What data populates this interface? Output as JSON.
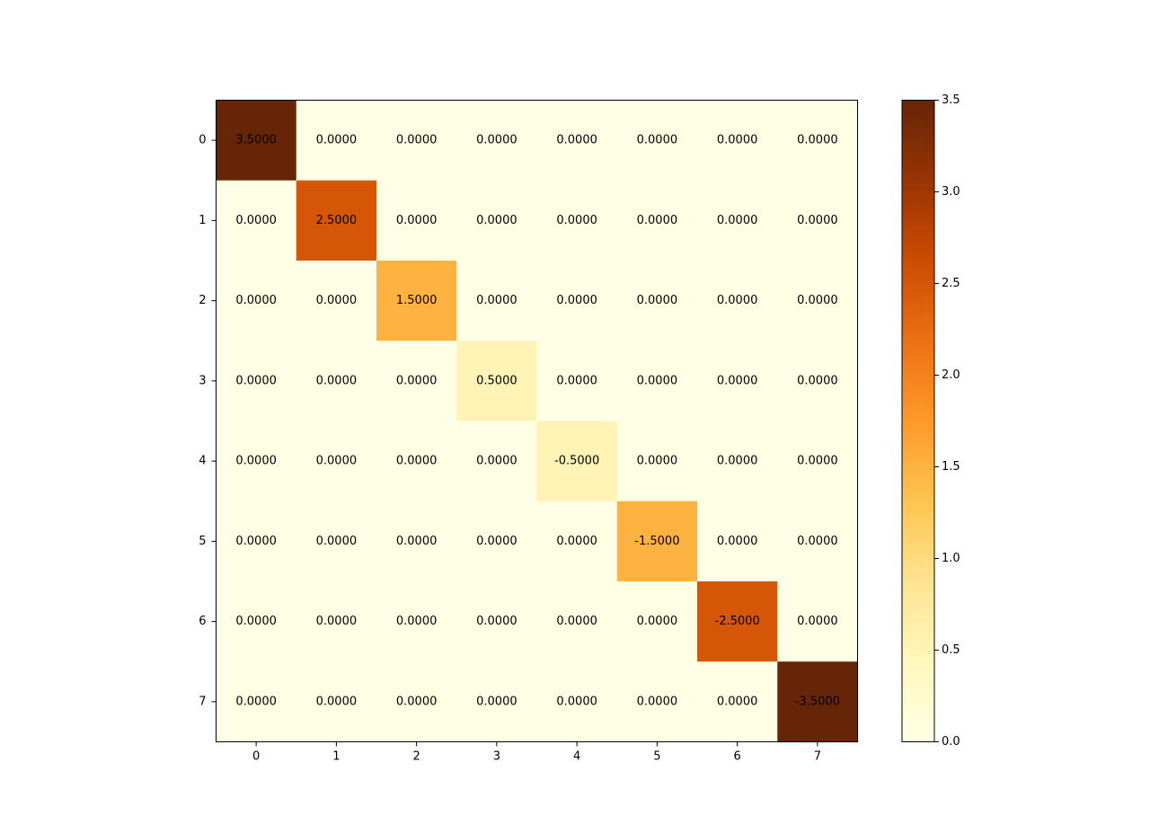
{
  "chart_data": {
    "type": "heatmap",
    "title": "",
    "xlabel": "",
    "ylabel": "",
    "x_ticks": [
      "0",
      "1",
      "2",
      "3",
      "4",
      "5",
      "6",
      "7"
    ],
    "y_ticks": [
      "0",
      "1",
      "2",
      "3",
      "4",
      "5",
      "6",
      "7"
    ],
    "values": [
      [
        3.5,
        0,
        0,
        0,
        0,
        0,
        0,
        0
      ],
      [
        0,
        2.5,
        0,
        0,
        0,
        0,
        0,
        0
      ],
      [
        0,
        0,
        1.5,
        0,
        0,
        0,
        0,
        0
      ],
      [
        0,
        0,
        0,
        0.5,
        0,
        0,
        0,
        0
      ],
      [
        0,
        0,
        0,
        0,
        -0.5,
        0,
        0,
        0
      ],
      [
        0,
        0,
        0,
        0,
        0,
        -1.5,
        0,
        0
      ],
      [
        0,
        0,
        0,
        0,
        0,
        0,
        -2.5,
        0
      ],
      [
        0,
        0,
        0,
        0,
        0,
        0,
        0,
        -3.5
      ]
    ],
    "cell_labels": [
      [
        "3.5000",
        "0.0000",
        "0.0000",
        "0.0000",
        "0.0000",
        "0.0000",
        "0.0000",
        "0.0000"
      ],
      [
        "0.0000",
        "2.5000",
        "0.0000",
        "0.0000",
        "0.0000",
        "0.0000",
        "0.0000",
        "0.0000"
      ],
      [
        "0.0000",
        "0.0000",
        "1.5000",
        "0.0000",
        "0.0000",
        "0.0000",
        "0.0000",
        "0.0000"
      ],
      [
        "0.0000",
        "0.0000",
        "0.0000",
        "0.5000",
        "0.0000",
        "0.0000",
        "0.0000",
        "0.0000"
      ],
      [
        "0.0000",
        "0.0000",
        "0.0000",
        "0.0000",
        "-0.5000",
        "0.0000",
        "0.0000",
        "0.0000"
      ],
      [
        "0.0000",
        "0.0000",
        "0.0000",
        "0.0000",
        "0.0000",
        "-1.5000",
        "0.0000",
        "0.0000"
      ],
      [
        "0.0000",
        "0.0000",
        "0.0000",
        "0.0000",
        "0.0000",
        "0.0000",
        "-2.5000",
        "0.0000"
      ],
      [
        "0.0000",
        "0.0000",
        "0.0000",
        "0.0000",
        "0.0000",
        "0.0000",
        "0.0000",
        "-3.5000"
      ]
    ],
    "color_by": "absolute value",
    "colormap": "YlOrBr",
    "colormap_stops": [
      "#ffffe5",
      "#fff7bc",
      "#fee391",
      "#fec44f",
      "#fe9929",
      "#ec7014",
      "#cc4c02",
      "#993404",
      "#662506"
    ],
    "colorbar": {
      "range": [
        0.0,
        3.5
      ],
      "ticks": [
        0.0,
        0.5,
        1.0,
        1.5,
        2.0,
        2.5,
        3.0,
        3.5
      ],
      "tick_labels": [
        "0.0",
        "0.5",
        "1.0",
        "1.5",
        "2.0",
        "2.5",
        "3.0",
        "3.5"
      ],
      "position": "right"
    },
    "grid": false,
    "legend": "none"
  }
}
